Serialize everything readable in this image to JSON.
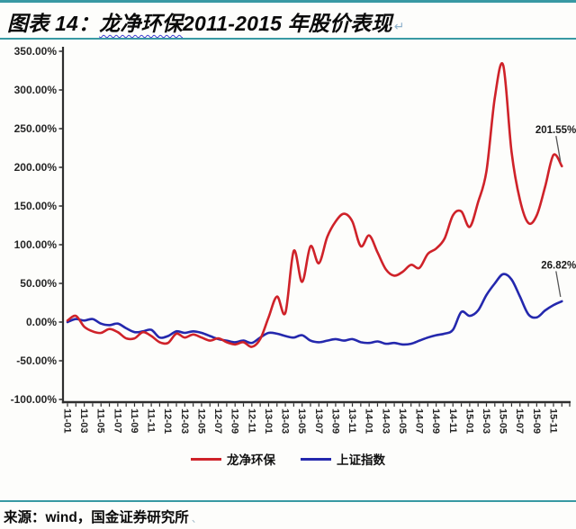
{
  "header": {
    "figure_label": "图表 14：",
    "title_link": "龙净环保",
    "title_rest": "2011-2015 年股价表现",
    "paragraph_mark": "↵"
  },
  "footer": {
    "source": "来源：wind，国金证券研究所",
    "trailing_mark": "、"
  },
  "colors": {
    "accent_rule": "#3899a3",
    "axis": "#2e2e2e",
    "red_series": "#cf2229",
    "blue_series": "#2428ad",
    "annotation_leader": "#555555"
  },
  "chart_data": {
    "type": "line",
    "title": "",
    "xlabel": "",
    "ylabel": "",
    "grid": false,
    "legend_position": "bottom",
    "ylim": [
      -100,
      350
    ],
    "y_ticks": [
      350,
      300,
      250,
      200,
      150,
      100,
      50,
      0,
      -50,
      -100
    ],
    "y_tick_labels": [
      "350.00%",
      "300.00%",
      "250.00%",
      "200.00%",
      "150.00%",
      "100.00%",
      "50.00%",
      "0.00%",
      "-50.00%",
      "-100.00%"
    ],
    "x_tick_labels": [
      "11-01",
      "11-03",
      "11-05",
      "11-07",
      "11-09",
      "11-11",
      "12-01",
      "12-03",
      "12-05",
      "12-07",
      "12-09",
      "12-11",
      "13-01",
      "13-03",
      "13-05",
      "13-07",
      "13-09",
      "13-11",
      "14-01",
      "14-03",
      "14-05",
      "14-07",
      "14-09",
      "14-11",
      "15-01",
      "15-03",
      "15-05",
      "15-07",
      "15-09",
      "15-11"
    ],
    "x_monthly": [
      "11-01",
      "11-02",
      "11-03",
      "11-04",
      "11-05",
      "11-06",
      "11-07",
      "11-08",
      "11-09",
      "11-10",
      "11-11",
      "11-12",
      "12-01",
      "12-02",
      "12-03",
      "12-04",
      "12-05",
      "12-06",
      "12-07",
      "12-08",
      "12-09",
      "12-10",
      "12-11",
      "12-12",
      "13-01",
      "13-02",
      "13-03",
      "13-04",
      "13-05",
      "13-06",
      "13-07",
      "13-08",
      "13-09",
      "13-10",
      "13-11",
      "13-12",
      "14-01",
      "14-02",
      "14-03",
      "14-04",
      "14-05",
      "14-06",
      "14-07",
      "14-08",
      "14-09",
      "14-10",
      "14-11",
      "14-12",
      "15-01",
      "15-02",
      "15-03",
      "15-04",
      "15-05",
      "15-06",
      "15-07",
      "15-08",
      "15-09",
      "15-10",
      "15-11",
      "15-12"
    ],
    "series": [
      {
        "id": "longjing",
        "name": "龙净环保",
        "color": "#cf2229",
        "values": [
          2,
          8,
          -6,
          -12,
          -14,
          -9,
          -13,
          -21,
          -21,
          -13,
          -18,
          -26,
          -27,
          -15,
          -20,
          -16,
          -20,
          -24,
          -21,
          -26,
          -29,
          -26,
          -32,
          -22,
          6,
          33,
          12,
          92,
          52,
          98,
          76,
          110,
          130,
          140,
          130,
          98,
          112,
          90,
          68,
          60,
          65,
          74,
          70,
          88,
          95,
          108,
          138,
          143,
          123,
          155,
          195,
          290,
          332,
          220,
          158,
          128,
          138,
          175,
          216,
          201.55
        ]
      },
      {
        "id": "shcomp",
        "name": "上证指数",
        "color": "#2428ad",
        "values": [
          0,
          4,
          2,
          4,
          -2,
          -4,
          -2,
          -8,
          -13,
          -12,
          -10,
          -20,
          -18,
          -12,
          -14,
          -12,
          -14,
          -18,
          -22,
          -24,
          -26,
          -24,
          -27,
          -20,
          -14,
          -15,
          -18,
          -20,
          -17,
          -24,
          -26,
          -24,
          -22,
          -24,
          -22,
          -26,
          -27,
          -25,
          -28,
          -27,
          -29,
          -28,
          -24,
          -20,
          -17,
          -15,
          -10,
          13,
          8,
          15,
          35,
          50,
          62,
          55,
          33,
          10,
          6,
          15,
          22,
          26.82
        ]
      }
    ],
    "annotations": [
      {
        "series": "longjing",
        "label": "201.55%",
        "value": 201.55
      },
      {
        "series": "shcomp",
        "label": "26.82%",
        "value": 26.82
      }
    ]
  }
}
